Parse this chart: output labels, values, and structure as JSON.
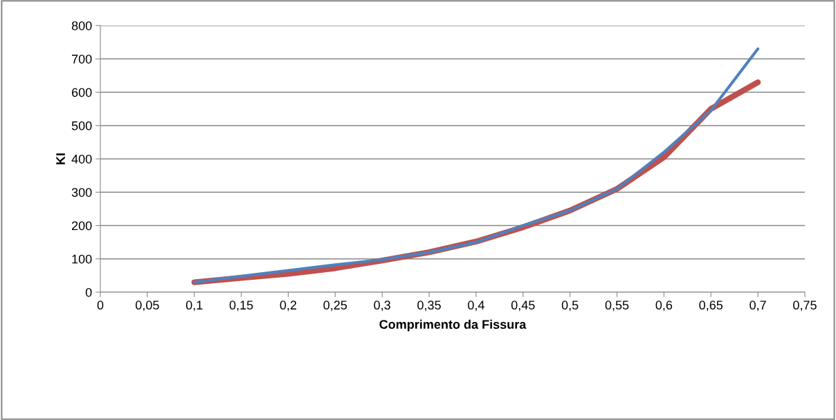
{
  "chart_data": {
    "type": "line",
    "xlabel": "Comprimento da Fissura",
    "ylabel": "KI",
    "x": [
      0.1,
      0.15,
      0.2,
      0.25,
      0.3,
      0.35,
      0.4,
      0.45,
      0.5,
      0.55,
      0.6,
      0.65,
      0.7
    ],
    "series": [
      {
        "color": "#c0504d",
        "values": [
          30,
          43,
          55,
          72,
          95,
          120,
          152,
          195,
          245,
          310,
          405,
          550,
          630
        ]
      },
      {
        "color": "#4f81bd",
        "values": [
          30,
          48,
          65,
          82,
          98,
          120,
          150,
          200,
          245,
          310,
          420,
          545,
          730
        ]
      }
    ],
    "xlim": [
      0,
      0.75
    ],
    "xticks": [
      0,
      {
        "value": 0.05,
        "label": "0,05"
      },
      {
        "value": 0.1,
        "label": "0,1"
      },
      {
        "value": 0.15,
        "label": "0,15"
      },
      {
        "value": 0.2,
        "label": "0,2"
      },
      {
        "value": 0.25,
        "label": "0,25"
      },
      {
        "value": 0.3,
        "label": "0,3"
      },
      {
        "value": 0.35,
        "label": "0,35"
      },
      {
        "value": 0.4,
        "label": "0,4"
      },
      {
        "value": 0.45,
        "label": "0,45"
      },
      {
        "value": 0.5,
        "label": "0,5"
      },
      {
        "value": 0.55,
        "label": "0,55"
      },
      {
        "value": 0.6,
        "label": "0,6"
      },
      {
        "value": 0.65,
        "label": "0,65"
      },
      {
        "value": 0.7,
        "label": "0,7"
      },
      {
        "value": 0.75,
        "label": "0,75"
      }
    ],
    "ylim": [
      0,
      800
    ],
    "yticks": [
      0,
      100,
      200,
      300,
      400,
      500,
      600,
      700,
      800
    ],
    "grid": "y",
    "marker": "none",
    "line_style": "solid"
  }
}
